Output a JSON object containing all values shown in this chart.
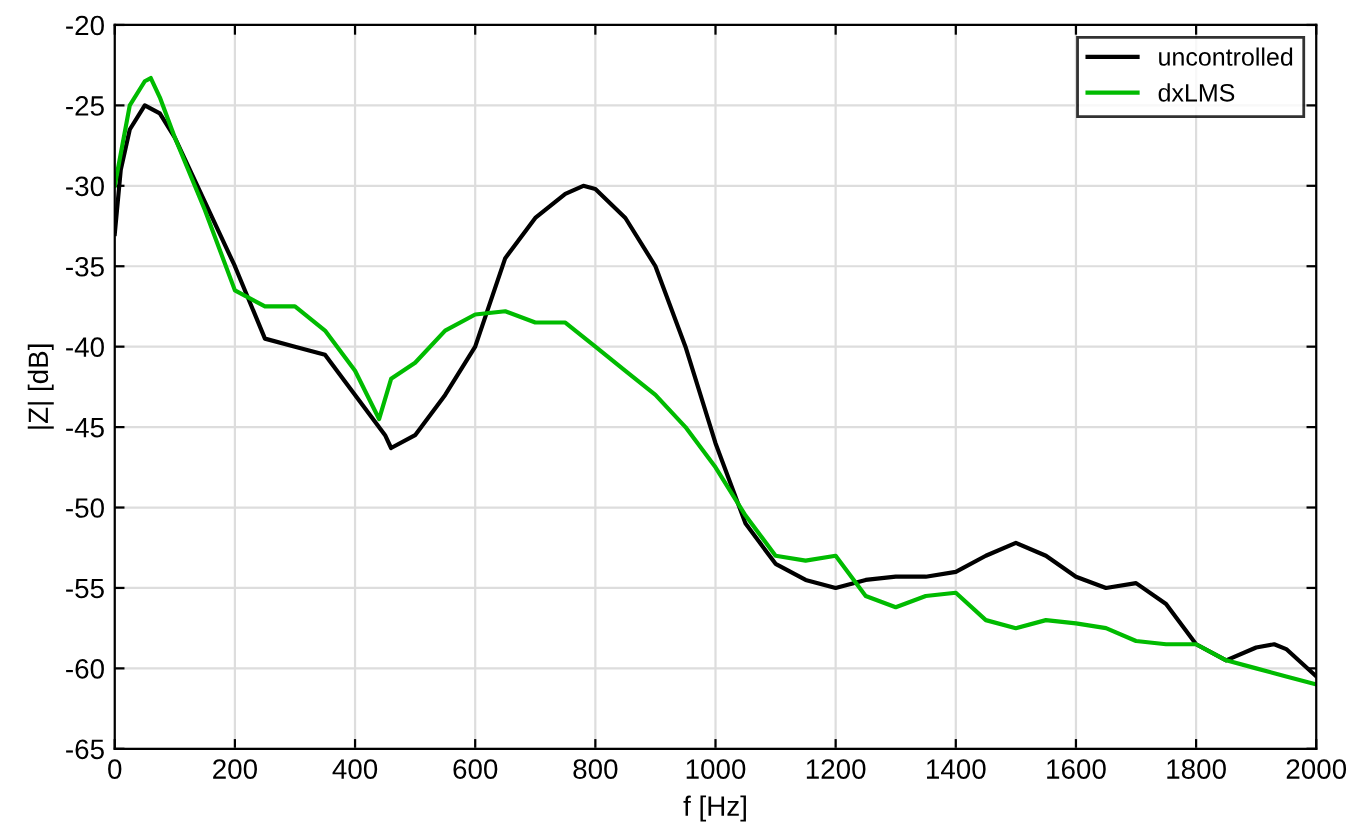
{
  "chart_data": {
    "type": "line",
    "xlabel": "f [Hz]",
    "ylabel": "|Z| [dB]",
    "xlim": [
      0,
      2000
    ],
    "ylim": [
      -65,
      -20
    ],
    "xticks": [
      0,
      200,
      400,
      600,
      800,
      1000,
      1200,
      1400,
      1600,
      1800,
      2000
    ],
    "yticks": [
      -65,
      -60,
      -55,
      -50,
      -45,
      -40,
      -35,
      -30,
      -25,
      -20
    ],
    "grid": true,
    "legend": "top right",
    "line_style": "solid",
    "marker": "none",
    "series": [
      {
        "name": "uncontrolled",
        "color": "#000000",
        "x": [
          0,
          10,
          25,
          50,
          75,
          100,
          150,
          200,
          250,
          300,
          350,
          400,
          450,
          460,
          500,
          550,
          600,
          650,
          700,
          750,
          780,
          800,
          850,
          900,
          950,
          1000,
          1050,
          1100,
          1150,
          1200,
          1250,
          1300,
          1350,
          1400,
          1450,
          1500,
          1550,
          1600,
          1650,
          1700,
          1750,
          1800,
          1850,
          1900,
          1930,
          1950,
          2000
        ],
        "values": [
          -33,
          -29,
          -26.5,
          -25,
          -25.5,
          -27,
          -31,
          -35,
          -39.5,
          -40,
          -40.5,
          -43,
          -45.5,
          -46.3,
          -45.5,
          -43,
          -40,
          -34.5,
          -32,
          -30.5,
          -30,
          -30.2,
          -32,
          -35,
          -40,
          -46,
          -51,
          -53.5,
          -54.5,
          -55,
          -54.5,
          -54.3,
          -54.3,
          -54,
          -53,
          -52.2,
          -53,
          -54.3,
          -55,
          -54.7,
          -56,
          -58.5,
          -59.5,
          -58.7,
          -58.5,
          -58.8,
          -60.5
        ]
      },
      {
        "name": "dxLMS",
        "color": "#00bb00",
        "x": [
          0,
          25,
          50,
          60,
          75,
          100,
          150,
          200,
          250,
          300,
          350,
          400,
          440,
          460,
          500,
          550,
          600,
          650,
          700,
          750,
          800,
          850,
          900,
          950,
          1000,
          1050,
          1100,
          1150,
          1200,
          1250,
          1300,
          1350,
          1400,
          1450,
          1500,
          1550,
          1600,
          1650,
          1700,
          1750,
          1800,
          1850,
          1900,
          1950,
          2000
        ],
        "values": [
          -30,
          -25,
          -23.5,
          -23.3,
          -24.5,
          -27,
          -31.5,
          -36.5,
          -37.5,
          -37.5,
          -39,
          -41.5,
          -44.5,
          -42,
          -41,
          -39,
          -38,
          -37.8,
          -38.5,
          -38.5,
          -40,
          -41.5,
          -43,
          -45,
          -47.5,
          -50.5,
          -53,
          -53.3,
          -53,
          -55.5,
          -56.2,
          -55.5,
          -55.3,
          -57,
          -57.5,
          -57,
          -57.2,
          -57.5,
          -58.3,
          -58.5,
          -58.5,
          -59.5,
          -60,
          -60.5,
          -61
        ]
      }
    ]
  }
}
